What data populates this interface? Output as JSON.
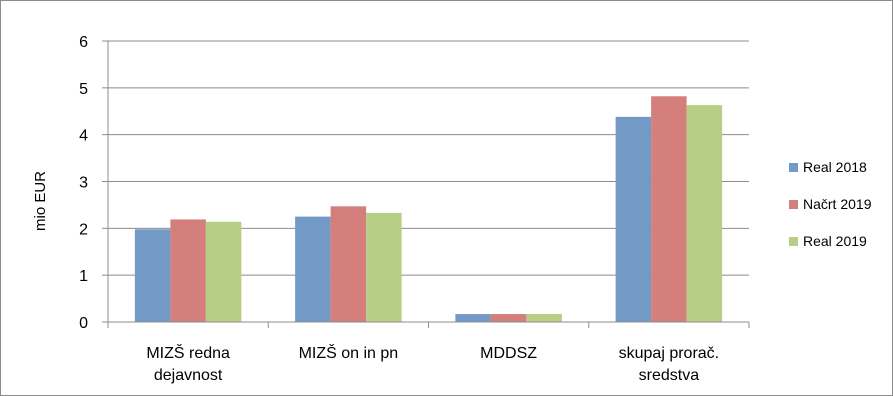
{
  "chart_data": {
    "type": "bar",
    "title": "",
    "xlabel": "",
    "ylabel": "mio EUR",
    "ylim": [
      0,
      6
    ],
    "yticks": [
      0,
      1,
      2,
      3,
      4,
      5,
      6
    ],
    "grid": true,
    "legend_position": "right",
    "categories": [
      [
        "MIZŠ redna",
        "dejavnost"
      ],
      [
        "MIZŠ on in pn"
      ],
      [
        "MDDSZ"
      ],
      [
        "skupaj prorač.",
        "sredstva"
      ]
    ],
    "series": [
      {
        "name": "Real 2018",
        "color": "#7399c6",
        "values": [
          1.98,
          2.25,
          0.17,
          4.38
        ]
      },
      {
        "name": "Načrt 2019",
        "color": "#d47f7b",
        "values": [
          2.19,
          2.47,
          0.17,
          4.82
        ]
      },
      {
        "name": "Real 2019",
        "color": "#b6cf85",
        "values": [
          2.14,
          2.33,
          0.17,
          4.63
        ]
      }
    ]
  }
}
